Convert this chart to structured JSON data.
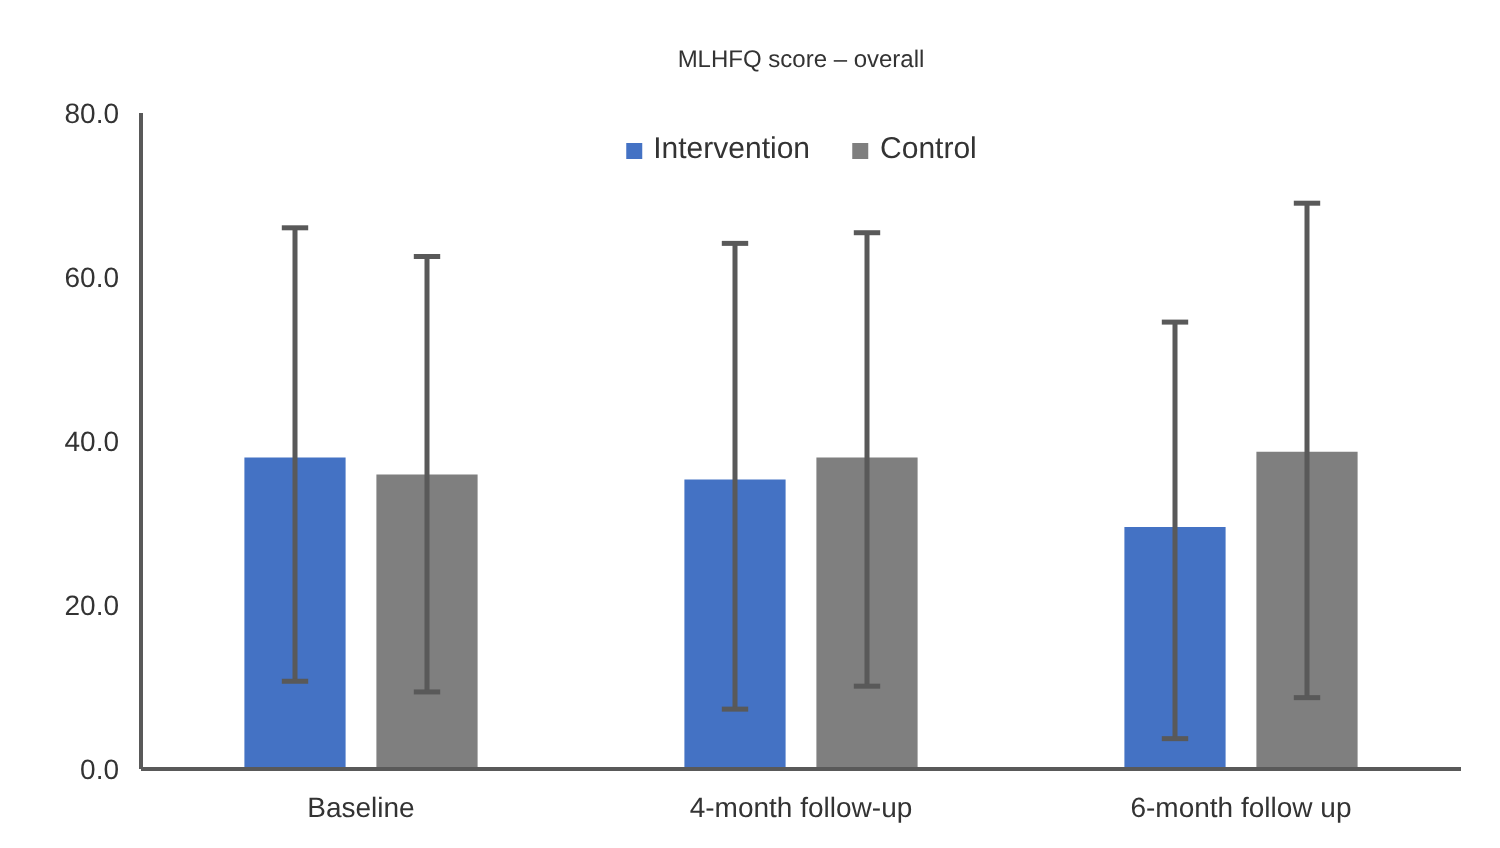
{
  "chart_data": {
    "type": "bar",
    "title": "MLHFQ score – overall",
    "categories": [
      "Baseline",
      "4-month follow-up",
      "6-month follow up"
    ],
    "series": [
      {
        "name": "Intervention",
        "color": "#4472c4",
        "values": [
          38.0,
          35.3,
          29.5
        ],
        "errors": [
          [
            10.7,
            66.0
          ],
          [
            7.3,
            64.1
          ],
          [
            3.7,
            54.5
          ]
        ]
      },
      {
        "name": "Control",
        "color": "#7f7f7f",
        "values": [
          35.9,
          38.0,
          38.7
        ],
        "errors": [
          [
            9.4,
            62.5
          ],
          [
            10.1,
            65.4
          ],
          [
            8.7,
            69.0
          ]
        ]
      }
    ],
    "ylim": [
      0,
      80
    ],
    "yticks": [
      {
        "value": 0,
        "label": "0.0"
      },
      {
        "value": 20,
        "label": "20.0"
      },
      {
        "value": 40,
        "label": "40.0"
      },
      {
        "value": 60,
        "label": "60.0"
      },
      {
        "value": 80,
        "label": "80.0"
      }
    ],
    "grid": false,
    "legend": "top"
  }
}
